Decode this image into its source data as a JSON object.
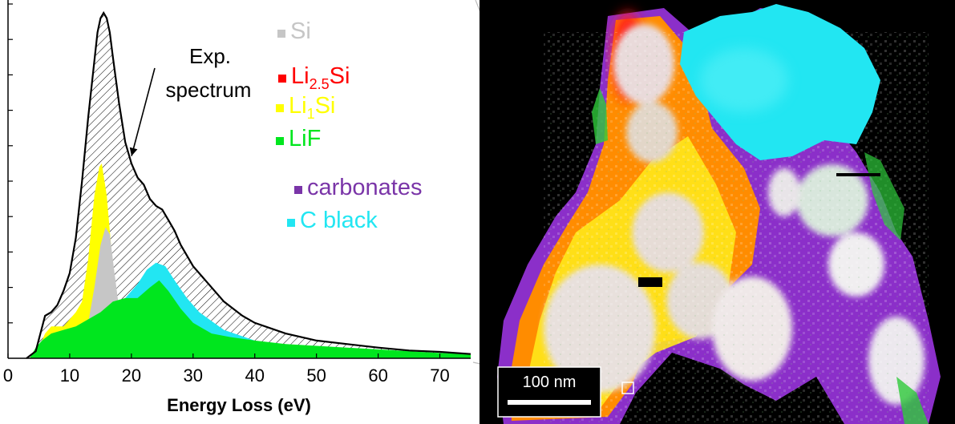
{
  "chart_data": {
    "type": "area",
    "title": "",
    "xlabel": "Energy Loss (eV)",
    "ylabel": "",
    "xlim": [
      0,
      75
    ],
    "ylim": [
      0,
      1.0
    ],
    "x_ticks": [
      0,
      10,
      20,
      30,
      40,
      50,
      60,
      70
    ],
    "y_ticks_count": 10,
    "y_tick_labels_shown": false,
    "grid": false,
    "legend": {
      "placement": "top-right",
      "entries": [
        {
          "series": "Si",
          "parts": [
            {
              "text": "Si"
            }
          ],
          "color": "#c6c6c6"
        },
        {
          "series": "Li2.5Si",
          "parts": [
            {
              "text": "Li"
            },
            {
              "text": "2.5",
              "sub": true
            },
            {
              "text": "Si"
            }
          ],
          "color": "#ff0000"
        },
        {
          "series": "Li1Si",
          "parts": [
            {
              "text": "Li"
            },
            {
              "text": "1",
              "sub": true
            },
            {
              "text": "Si"
            }
          ],
          "color": "#ffff00"
        },
        {
          "series": "LiF",
          "parts": [
            {
              "text": "LiF"
            }
          ],
          "color": "#00e61e"
        },
        {
          "series": "carbonates",
          "parts": [
            {
              "text": "carbonates"
            }
          ],
          "color": "#7a35a8"
        },
        {
          "series": "C black",
          "parts": [
            {
              "text": "C black"
            }
          ],
          "color": "#22e6f2"
        }
      ]
    },
    "annotation": {
      "lines": [
        "Exp.",
        "spectrum"
      ],
      "points_to_x": 19.5
    },
    "series": [
      {
        "key": "exp",
        "style": "line-hatched",
        "color": "#000000",
        "points": [
          [
            3.0,
            0.0
          ],
          [
            4.5,
            0.02
          ],
          [
            6,
            0.12
          ],
          [
            7,
            0.13
          ],
          [
            8,
            0.15
          ],
          [
            9,
            0.19
          ],
          [
            10,
            0.24
          ],
          [
            11,
            0.34
          ],
          [
            12,
            0.5
          ],
          [
            13,
            0.68
          ],
          [
            14,
            0.84
          ],
          [
            14.5,
            0.92
          ],
          [
            15,
            0.96
          ],
          [
            15.5,
            0.975
          ],
          [
            16,
            0.96
          ],
          [
            16.5,
            0.92
          ],
          [
            17,
            0.85
          ],
          [
            18,
            0.72
          ],
          [
            19,
            0.61
          ],
          [
            20,
            0.55
          ],
          [
            21,
            0.51
          ],
          [
            22,
            0.49
          ],
          [
            23,
            0.45
          ],
          [
            24,
            0.43
          ],
          [
            25,
            0.42
          ],
          [
            26,
            0.39
          ],
          [
            27,
            0.36
          ],
          [
            28,
            0.32
          ],
          [
            30,
            0.26
          ],
          [
            32,
            0.22
          ],
          [
            35,
            0.16
          ],
          [
            38,
            0.12
          ],
          [
            40,
            0.1
          ],
          [
            45,
            0.07
          ],
          [
            50,
            0.05
          ],
          [
            55,
            0.04
          ],
          [
            60,
            0.03
          ],
          [
            65,
            0.022
          ],
          [
            70,
            0.018
          ],
          [
            75,
            0.012
          ]
        ]
      },
      {
        "key": "Li1Si",
        "color": "#ffff00",
        "points": [
          [
            4,
            0.0
          ],
          [
            5,
            0.03
          ],
          [
            6,
            0.07
          ],
          [
            7,
            0.09
          ],
          [
            8,
            0.09
          ],
          [
            9,
            0.09
          ],
          [
            10,
            0.11
          ],
          [
            11,
            0.13
          ],
          [
            12,
            0.16
          ],
          [
            13,
            0.28
          ],
          [
            14,
            0.46
          ],
          [
            14.8,
            0.54
          ],
          [
            15.2,
            0.55
          ],
          [
            16,
            0.46
          ],
          [
            16.8,
            0.3
          ],
          [
            17.5,
            0.18
          ],
          [
            18.5,
            0.12
          ],
          [
            20,
            0.1
          ],
          [
            22,
            0.08
          ],
          [
            25,
            0.06
          ],
          [
            30,
            0.03
          ],
          [
            35,
            0.02
          ],
          [
            40,
            0.01
          ],
          [
            45,
            0.0
          ]
        ]
      },
      {
        "key": "Si",
        "color": "#c6c6c6",
        "points": [
          [
            11,
            0.0
          ],
          [
            12,
            0.05
          ],
          [
            13,
            0.1
          ],
          [
            14,
            0.2
          ],
          [
            15,
            0.32
          ],
          [
            15.8,
            0.37
          ],
          [
            16.5,
            0.35
          ],
          [
            17.2,
            0.25
          ],
          [
            18,
            0.14
          ],
          [
            19,
            0.06
          ],
          [
            20,
            0.02
          ],
          [
            21,
            0.0
          ]
        ]
      },
      {
        "key": "C black",
        "color": "#22e6f2",
        "points": [
          [
            5,
            0.0
          ],
          [
            8,
            0.02
          ],
          [
            11,
            0.06
          ],
          [
            14,
            0.09
          ],
          [
            17,
            0.13
          ],
          [
            19,
            0.17
          ],
          [
            21,
            0.21
          ],
          [
            22.5,
            0.25
          ],
          [
            24,
            0.27
          ],
          [
            25.5,
            0.26
          ],
          [
            27,
            0.22
          ],
          [
            29,
            0.17
          ],
          [
            31,
            0.13
          ],
          [
            35,
            0.08
          ],
          [
            40,
            0.05
          ],
          [
            45,
            0.03
          ],
          [
            50,
            0.02
          ],
          [
            55,
            0.01
          ],
          [
            60,
            0.005
          ],
          [
            65,
            0.003
          ],
          [
            75,
            0.002
          ]
        ]
      },
      {
        "key": "LiF",
        "color": "#00e61e",
        "points": [
          [
            3.5,
            0.0
          ],
          [
            4.5,
            0.03
          ],
          [
            5.5,
            0.05
          ],
          [
            7,
            0.07
          ],
          [
            9,
            0.08
          ],
          [
            11,
            0.09
          ],
          [
            13,
            0.11
          ],
          [
            15,
            0.13
          ],
          [
            17,
            0.16
          ],
          [
            19,
            0.17
          ],
          [
            21,
            0.17
          ],
          [
            23,
            0.2
          ],
          [
            24.5,
            0.22
          ],
          [
            26,
            0.19
          ],
          [
            28,
            0.14
          ],
          [
            30,
            0.1
          ],
          [
            33,
            0.07
          ],
          [
            36,
            0.06
          ],
          [
            40,
            0.05
          ],
          [
            45,
            0.04
          ],
          [
            50,
            0.035
          ],
          [
            55,
            0.03
          ],
          [
            60,
            0.025
          ],
          [
            65,
            0.02
          ],
          [
            70,
            0.015
          ],
          [
            75,
            0.012
          ]
        ]
      }
    ]
  },
  "map": {
    "scale_bar_label": "100 nm",
    "colors": {
      "background": "#000000",
      "carbonates": "#8b2fc9",
      "Li2.5Si": "#ff1a1a",
      "orange": "#ff8c00",
      "Li1Si": "#ffe81a",
      "Si": "#e6d8d8",
      "C black": "#22e6f2",
      "LiF": "#2ec93a"
    }
  }
}
